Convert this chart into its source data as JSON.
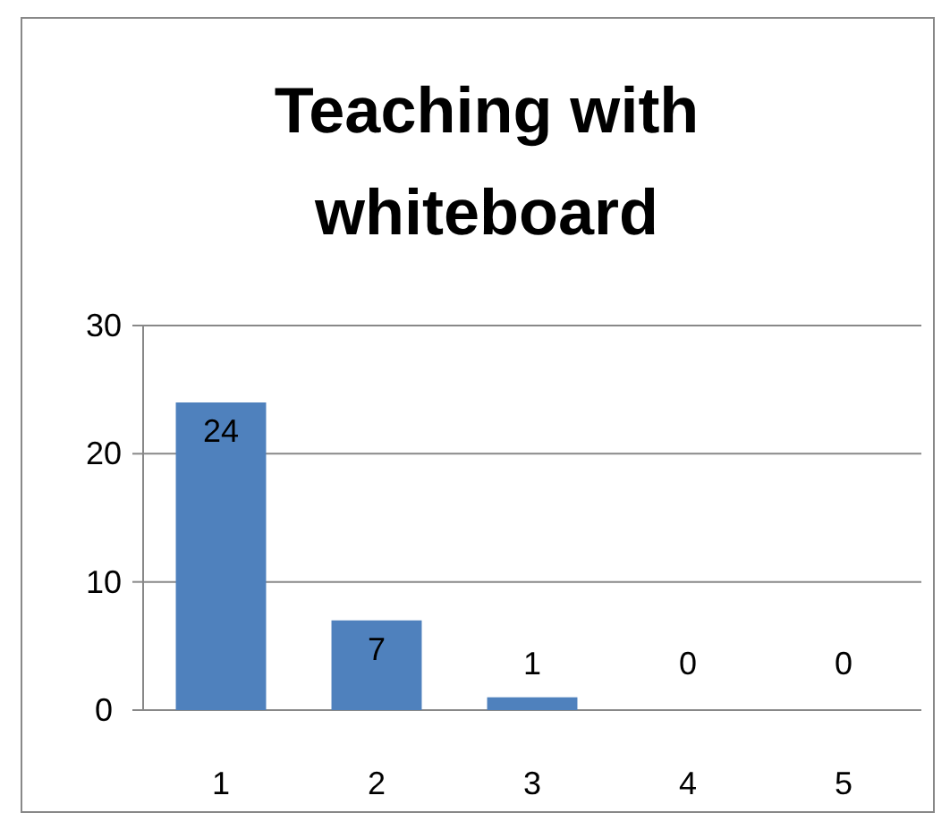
{
  "chart_data": {
    "type": "bar",
    "title": "Teaching with whiteboard",
    "categories": [
      "1",
      "2",
      "3",
      "4",
      "5"
    ],
    "values": [
      24,
      7,
      1,
      0,
      0
    ],
    "color": "#4f81bd",
    "ylim": [
      0,
      30
    ],
    "yticks": [
      0,
      10,
      20,
      30
    ],
    "grid": "y",
    "data_labels": true
  }
}
